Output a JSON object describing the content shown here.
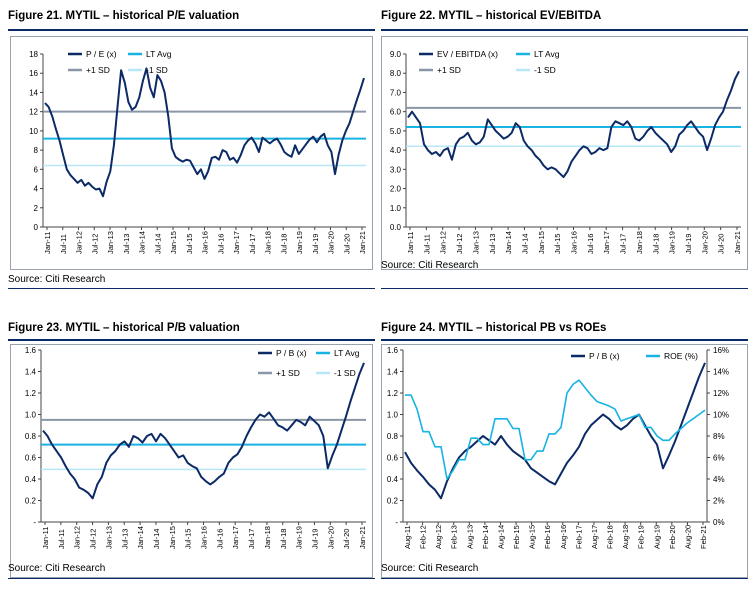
{
  "colors": {
    "dark_series": "#0b2a66",
    "lt_avg": "#17b3e3",
    "plus_sd": "#8a96a8",
    "minus_sd": "#b7e7f7",
    "roe": "#17b3e3",
    "rule": "#0a2a66"
  },
  "charts": [
    {
      "id": "fig21",
      "title": "Figure 21. MYTIL – historical P/E valuation",
      "source": "Source: Citi Research",
      "chart_data": {
        "type": "line",
        "x_ticks": [
          "Jan-11",
          "Jul-11",
          "Jan-12",
          "Jul-12",
          "Jan-13",
          "Jul-13",
          "Jan-14",
          "Jul-14",
          "Jan-15",
          "Jul-15",
          "Jan-16",
          "Jul-16",
          "Jan-17",
          "Jul-17",
          "Jan-18",
          "Jul-18",
          "Jan-19",
          "Jul-19",
          "Jan-20",
          "Jul-20",
          "Jan-21"
        ],
        "ylim": [
          0,
          18
        ],
        "y_ticks": [
          "0",
          "2",
          "4",
          "6",
          "8",
          "10",
          "12",
          "14",
          "16",
          "18"
        ],
        "legend": [
          "P / E (x)",
          "LT Avg",
          "+1 SD",
          "-1 SD"
        ],
        "lt_avg": 9.2,
        "plus_sd": 12.0,
        "minus_sd": 6.4,
        "series": [
          {
            "name": "P / E (x)",
            "values": [
              12.9,
              12.5,
              11.5,
              10.2,
              9.0,
              7.5,
              6.0,
              5.4,
              5.0,
              4.6,
              4.9,
              4.3,
              4.6,
              4.2,
              3.9,
              4.0,
              3.2,
              4.7,
              5.8,
              8.5,
              12.5,
              16.3,
              15.0,
              13.0,
              12.2,
              12.5,
              13.5,
              15.2,
              16.5,
              14.5,
              13.5,
              15.8,
              15.2,
              14.0,
              11.5,
              8.2,
              7.3,
              7.0,
              6.8,
              7.0,
              6.9,
              6.2,
              5.5,
              6.0,
              5.0,
              5.8,
              7.2,
              7.3,
              7.0,
              8.0,
              7.8,
              7.0,
              7.2,
              6.7,
              7.5,
              8.5,
              9.0,
              9.3,
              8.7,
              7.8,
              9.3,
              9.0,
              8.7,
              9.0,
              9.2,
              8.6,
              7.8,
              7.5,
              7.3,
              8.5,
              7.6,
              8.1,
              8.6,
              9.1,
              9.4,
              8.8,
              9.4,
              9.7,
              8.5,
              7.8,
              5.5,
              7.5,
              9.0,
              10.0,
              10.8,
              12.0,
              13.2,
              14.3,
              15.5
            ]
          }
        ]
      }
    },
    {
      "id": "fig22",
      "title": "Figure 22. MYTIL – historical EV/EBITDA",
      "source": "Source: Citi Research",
      "chart_data": {
        "type": "line",
        "x_ticks": [
          "Jan-11",
          "Jul-11",
          "Jan-12",
          "Jul-12",
          "Jan-13",
          "Jul-13",
          "Jan-14",
          "Jul-14",
          "Jan-15",
          "Jul-15",
          "Jan-16",
          "Jul-16",
          "Jan-17",
          "Jul-17",
          "Jan-18",
          "Jul-18",
          "Jan-19",
          "Jul-19",
          "Jan-20",
          "Jul-20",
          "Jan-21"
        ],
        "ylim": [
          0,
          9
        ],
        "y_ticks": [
          "0.0",
          "1.0",
          "2.0",
          "3.0",
          "4.0",
          "5.0",
          "6.0",
          "7.0",
          "8.0",
          "9.0"
        ],
        "legend": [
          "EV / EBITDA (x)",
          "LT Avg",
          "+1 SD",
          "-1 SD"
        ],
        "lt_avg": 5.2,
        "plus_sd": 6.2,
        "minus_sd": 4.2,
        "series": [
          {
            "name": "EV / EBITDA (x)",
            "values": [
              5.7,
              6.0,
              5.7,
              5.4,
              4.3,
              4.0,
              3.8,
              3.9,
              3.7,
              4.0,
              4.1,
              3.5,
              4.3,
              4.6,
              4.7,
              4.9,
              4.5,
              4.3,
              4.4,
              4.7,
              5.6,
              5.3,
              5.0,
              4.8,
              4.6,
              4.7,
              4.9,
              5.4,
              5.2,
              4.5,
              4.2,
              4.0,
              3.7,
              3.5,
              3.2,
              3.0,
              3.1,
              3.0,
              2.8,
              2.6,
              2.9,
              3.4,
              3.7,
              4.0,
              4.2,
              4.1,
              3.8,
              3.9,
              4.1,
              4.0,
              4.1,
              5.2,
              5.5,
              5.4,
              5.3,
              5.5,
              5.2,
              4.6,
              4.5,
              4.7,
              5.0,
              5.2,
              4.9,
              4.7,
              4.5,
              4.3,
              3.9,
              4.2,
              4.8,
              5.0,
              5.3,
              5.5,
              5.2,
              4.9,
              4.7,
              4.0,
              4.6,
              5.3,
              5.7,
              6.0,
              6.6,
              7.1,
              7.7,
              8.1
            ]
          }
        ]
      }
    },
    {
      "id": "fig23",
      "title": "Figure 23. MYTIL – historical P/B valuation",
      "source": "Source: Citi Research",
      "chart_data": {
        "type": "line",
        "x_ticks": [
          "Jan-11",
          "Jul-11",
          "Jan-12",
          "Jul-12",
          "Jan-13",
          "Jul-13",
          "Jan-14",
          "Jul-14",
          "Jan-15",
          "Jul-15",
          "Jan-16",
          "Jul-16",
          "Jan-17",
          "Jul-17",
          "Jan-18",
          "Jul-18",
          "Jan-19",
          "Jul-19",
          "Jan-20",
          "Jul-20",
          "Jan-21"
        ],
        "ylim": [
          0,
          1.6
        ],
        "y_ticks": [
          "-",
          "0.2",
          "0.4",
          "0.6",
          "0.8",
          "1.0",
          "1.2",
          "1.4",
          "1.6"
        ],
        "legend": [
          "P / B (x)",
          "LT Avg",
          "+1 SD",
          "-1 SD"
        ],
        "lt_avg": 0.72,
        "plus_sd": 0.95,
        "minus_sd": 0.49,
        "series": [
          {
            "name": "P / B (x)",
            "values": [
              0.85,
              0.8,
              0.72,
              0.66,
              0.6,
              0.52,
              0.45,
              0.4,
              0.32,
              0.3,
              0.27,
              0.22,
              0.35,
              0.42,
              0.55,
              0.62,
              0.66,
              0.72,
              0.75,
              0.7,
              0.8,
              0.78,
              0.74,
              0.8,
              0.82,
              0.75,
              0.82,
              0.78,
              0.72,
              0.66,
              0.6,
              0.62,
              0.55,
              0.52,
              0.5,
              0.42,
              0.38,
              0.35,
              0.38,
              0.42,
              0.45,
              0.55,
              0.6,
              0.63,
              0.7,
              0.8,
              0.88,
              0.95,
              1.0,
              0.98,
              1.02,
              0.96,
              0.9,
              0.88,
              0.85,
              0.9,
              0.95,
              0.93,
              0.9,
              0.98,
              0.94,
              0.9,
              0.8,
              0.5,
              0.62,
              0.72,
              0.85,
              0.98,
              1.12,
              1.25,
              1.38,
              1.48
            ]
          }
        ]
      }
    },
    {
      "id": "fig24",
      "title": "Figure 24. MYTIL – historical PB vs ROEs",
      "source": "Source: Citi Research",
      "chart_data": {
        "type": "line",
        "x_ticks": [
          "Aug-11",
          "Feb-12",
          "Aug-12",
          "Feb-13",
          "Aug-13",
          "Feb-14",
          "Aug-14",
          "Feb-15",
          "Aug-15",
          "Feb-16",
          "Aug-16",
          "Feb-17",
          "Aug-17",
          "Feb-18",
          "Aug-18",
          "Feb-19",
          "Aug-19",
          "Feb-20",
          "Aug-20",
          "Feb-21"
        ],
        "ylim": [
          0,
          1.6
        ],
        "y_ticks": [
          "-",
          "0.2",
          "0.4",
          "0.6",
          "0.8",
          "1.0",
          "1.2",
          "1.4",
          "1.6"
        ],
        "y2lim": [
          0,
          16
        ],
        "y2_ticks": [
          "0%",
          "2%",
          "4%",
          "6%",
          "8%",
          "10%",
          "12%",
          "14%",
          "16%"
        ],
        "legend": [
          "P / B (x)",
          "ROE (%)"
        ],
        "series": [
          {
            "name": "P / B (x)",
            "axis": "left",
            "values": [
              0.65,
              0.55,
              0.48,
              0.42,
              0.35,
              0.3,
              0.22,
              0.38,
              0.5,
              0.6,
              0.66,
              0.7,
              0.75,
              0.8,
              0.76,
              0.72,
              0.8,
              0.72,
              0.66,
              0.62,
              0.58,
              0.5,
              0.46,
              0.42,
              0.38,
              0.35,
              0.45,
              0.55,
              0.62,
              0.7,
              0.82,
              0.9,
              0.95,
              1.0,
              0.96,
              0.9,
              0.86,
              0.9,
              0.96,
              1.0,
              0.9,
              0.8,
              0.72,
              0.5,
              0.62,
              0.75,
              0.9,
              1.05,
              1.2,
              1.35,
              1.48
            ]
          },
          {
            "name": "ROE (%)",
            "axis": "right",
            "values": [
              11.8,
              11.8,
              10.5,
              8.4,
              8.4,
              7.0,
              7.0,
              4.0,
              4.8,
              5.8,
              5.8,
              7.8,
              7.8,
              7.2,
              7.2,
              9.6,
              9.6,
              9.6,
              8.7,
              8.7,
              5.8,
              5.8,
              6.6,
              6.6,
              8.2,
              8.2,
              8.8,
              12.0,
              12.8,
              13.2,
              12.5,
              11.8,
              11.2,
              11.0,
              10.8,
              10.5,
              9.4,
              9.6,
              9.8,
              10.0,
              8.8,
              8.8,
              8.0,
              7.6,
              7.6,
              8.2,
              8.7,
              9.2,
              9.6,
              10.0,
              10.4
            ]
          }
        ]
      }
    }
  ]
}
